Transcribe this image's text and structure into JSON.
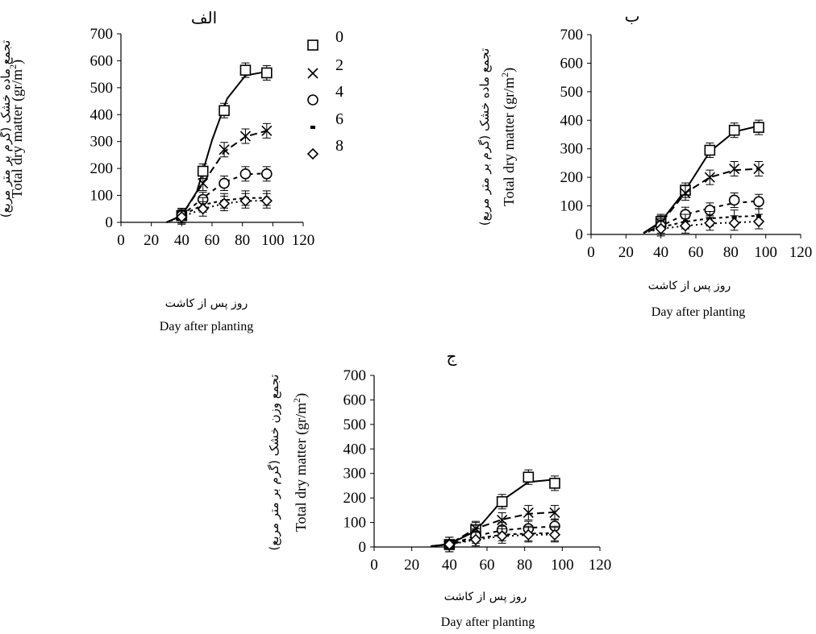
{
  "chart_data": [
    {
      "type": "line",
      "title": "الف",
      "ylabel": "Total dry matter (gr/m2)",
      "ylabel_fa": "تجمع ماده خشک (گرم بر متر مربع)",
      "xlabel": "Day after planting",
      "xlabel_fa": "روز پس از کاشت",
      "xlim": [
        0,
        120
      ],
      "ylim": [
        0,
        700
      ],
      "xticks": [
        "0",
        "20",
        "40",
        "60",
        "80",
        "100",
        "120"
      ],
      "yticks": [
        "0",
        "100",
        "200",
        "300",
        "400",
        "500",
        "600",
        "700"
      ],
      "x": [
        40,
        54,
        68,
        82,
        96
      ],
      "series": [
        {
          "name": "0",
          "marker": "square",
          "values": [
            25,
            190,
            415,
            565,
            555
          ],
          "fit": [
            [
              30,
              0
            ],
            [
              40,
              25
            ],
            [
              50,
              115
            ],
            [
              60,
              305
            ],
            [
              70,
              460
            ],
            [
              82,
              545
            ],
            [
              96,
              560
            ]
          ]
        },
        {
          "name": "2",
          "marker": "x",
          "values": [
            25,
            145,
            270,
            320,
            340
          ],
          "fit": [
            [
              30,
              0
            ],
            [
              40,
              25
            ],
            [
              54,
              145
            ],
            [
              68,
              262
            ],
            [
              82,
              318
            ],
            [
              96,
              340
            ]
          ]
        },
        {
          "name": "4",
          "marker": "circle",
          "values": [
            25,
            85,
            145,
            180,
            180
          ],
          "fit": [
            [
              30,
              0
            ],
            [
              40,
              25
            ],
            [
              54,
              90
            ],
            [
              68,
              150
            ],
            [
              82,
              178
            ],
            [
              96,
              182
            ]
          ]
        },
        {
          "name": "6",
          "marker": "dash",
          "values": [
            25,
            65,
            80,
            90,
            90
          ],
          "fit": [
            [
              30,
              0
            ],
            [
              40,
              25
            ],
            [
              54,
              65
            ],
            [
              68,
              82
            ],
            [
              82,
              90
            ],
            [
              96,
              91
            ]
          ]
        },
        {
          "name": "8",
          "marker": "diamond",
          "values": [
            20,
            50,
            70,
            80,
            80
          ],
          "fit": [
            [
              30,
              0
            ],
            [
              40,
              20
            ],
            [
              54,
              50
            ],
            [
              68,
              70
            ],
            [
              82,
              79
            ],
            [
              96,
              81
            ]
          ]
        }
      ],
      "legend_location": "right"
    },
    {
      "type": "line",
      "title": "ب",
      "ylabel": "Total dry matter (gr/m2)",
      "ylabel_fa": "تجمع ماده خشک (گرم بر متر مربع)",
      "xlabel": "Day after planting",
      "xlabel_fa": "روز پس از کاشت",
      "xlim": [
        0,
        120
      ],
      "ylim": [
        0,
        700
      ],
      "xticks": [
        "0",
        "20",
        "40",
        "60",
        "80",
        "100",
        "120"
      ],
      "yticks": [
        "0",
        "100",
        "200",
        "300",
        "400",
        "500",
        "600",
        "700"
      ],
      "x": [
        40,
        54,
        68,
        82,
        96
      ],
      "series": [
        {
          "name": "0",
          "marker": "square",
          "values": [
            45,
            155,
            295,
            365,
            375
          ],
          "fit": [
            [
              30,
              5
            ],
            [
              40,
              45
            ],
            [
              54,
              155
            ],
            [
              68,
              290
            ],
            [
              82,
              360
            ],
            [
              96,
              380
            ]
          ]
        },
        {
          "name": "2",
          "marker": "x",
          "values": [
            40,
            145,
            200,
            230,
            230
          ],
          "fit": [
            [
              30,
              5
            ],
            [
              40,
              40
            ],
            [
              54,
              145
            ],
            [
              68,
              200
            ],
            [
              82,
              225
            ],
            [
              96,
              230
            ]
          ]
        },
        {
          "name": "4",
          "marker": "circle",
          "values": [
            30,
            70,
            85,
            120,
            115
          ],
          "fit": [
            [
              30,
              5
            ],
            [
              40,
              30
            ],
            [
              54,
              70
            ],
            [
              68,
              92
            ],
            [
              82,
              110
            ],
            [
              96,
              117
            ]
          ]
        },
        {
          "name": "6",
          "marker": "dash",
          "values": [
            25,
            45,
            55,
            60,
            65
          ],
          "fit": [
            [
              30,
              5
            ],
            [
              40,
              25
            ],
            [
              54,
              45
            ],
            [
              68,
              56
            ],
            [
              82,
              62
            ],
            [
              96,
              65
            ]
          ]
        },
        {
          "name": "8",
          "marker": "diamond",
          "values": [
            20,
            30,
            40,
            40,
            45
          ],
          "fit": [
            [
              30,
              5
            ],
            [
              40,
              20
            ],
            [
              54,
              30
            ],
            [
              68,
              38
            ],
            [
              82,
              42
            ],
            [
              96,
              45
            ]
          ]
        }
      ]
    },
    {
      "type": "line",
      "title": "ج",
      "ylabel": "Total dry matter (gr/m2)",
      "ylabel_fa": "تجمع وزن خشک (گرم بر متر مربع)",
      "xlabel": "Day after planting",
      "xlabel_fa": "روز پس از کاشت",
      "xlim": [
        0,
        120
      ],
      "ylim": [
        0,
        700
      ],
      "xticks": [
        "0",
        "20",
        "40",
        "60",
        "80",
        "100",
        "120"
      ],
      "yticks": [
        "0",
        "100",
        "200",
        "300",
        "400",
        "500",
        "600",
        "700"
      ],
      "x": [
        40,
        54,
        68,
        82,
        96
      ],
      "series": [
        {
          "name": "0",
          "marker": "square",
          "values": [
            10,
            70,
            185,
            285,
            260
          ],
          "fit": [
            [
              30,
              3
            ],
            [
              40,
              12
            ],
            [
              54,
              65
            ],
            [
              68,
              190
            ],
            [
              82,
              265
            ],
            [
              96,
              275
            ]
          ]
        },
        {
          "name": "2",
          "marker": "x",
          "values": [
            10,
            75,
            110,
            140,
            140
          ],
          "fit": [
            [
              30,
              3
            ],
            [
              40,
              12
            ],
            [
              54,
              75
            ],
            [
              68,
              112
            ],
            [
              82,
              135
            ],
            [
              96,
              142
            ]
          ]
        },
        {
          "name": "4",
          "marker": "circle",
          "values": [
            10,
            45,
            70,
            75,
            85
          ],
          "fit": [
            [
              30,
              3
            ],
            [
              40,
              10
            ],
            [
              54,
              45
            ],
            [
              68,
              68
            ],
            [
              82,
              78
            ],
            [
              96,
              84
            ]
          ]
        },
        {
          "name": "6",
          "marker": "dash",
          "values": [
            10,
            35,
            55,
            55,
            55
          ],
          "fit": [
            [
              30,
              3
            ],
            [
              40,
              10
            ],
            [
              54,
              35
            ],
            [
              68,
              50
            ],
            [
              82,
              55
            ],
            [
              96,
              57
            ]
          ]
        },
        {
          "name": "8",
          "marker": "diamond",
          "values": [
            10,
            30,
            45,
            50,
            50
          ],
          "fit": [
            [
              30,
              3
            ],
            [
              40,
              10
            ],
            [
              54,
              30
            ],
            [
              68,
              44
            ],
            [
              82,
              49
            ],
            [
              96,
              51
            ]
          ]
        }
      ]
    }
  ]
}
